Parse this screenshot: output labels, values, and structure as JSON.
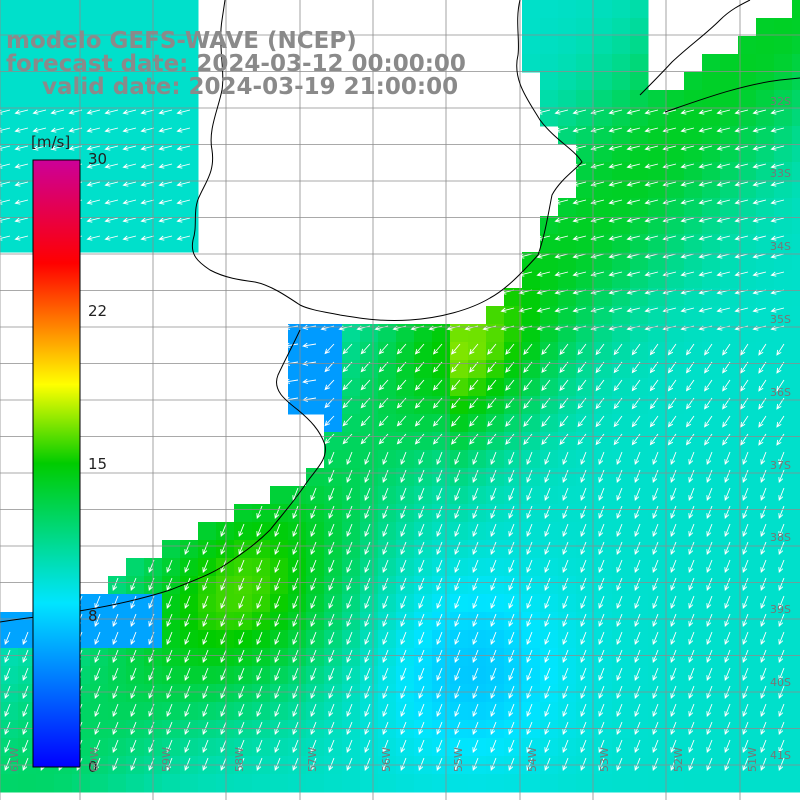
{
  "title": {
    "line1": "modelo GEFS-WAVE (NCEP)",
    "line2": "forecast date: 2024-03-12 00:00:00",
    "line3": "valid date: 2024-03-19 21:00:00"
  },
  "colorbar": {
    "units": "[m/s]",
    "min": 0,
    "max": 30,
    "ticks": [
      "30",
      "22",
      "15",
      "8",
      "0"
    ],
    "tick_values": [
      30,
      22,
      15,
      8,
      0
    ]
  },
  "map": {
    "lon_range": [
      -61,
      -50
    ],
    "lat_range": [
      -42,
      -31
    ],
    "lon_labels": [
      "61W",
      "60W",
      "59W",
      "58W",
      "57W",
      "56W",
      "55W",
      "54W",
      "53W",
      "52W",
      "51W"
    ],
    "lat_labels": [
      "32S",
      "33S",
      "34S",
      "35S",
      "36S",
      "37S",
      "38S",
      "39S",
      "40S",
      "41S"
    ],
    "grid": true,
    "colors": {
      "land": "#ffffff",
      "grid": "#8c8c8c",
      "coast": "#000000",
      "arrows": "#ffffff"
    }
  }
}
